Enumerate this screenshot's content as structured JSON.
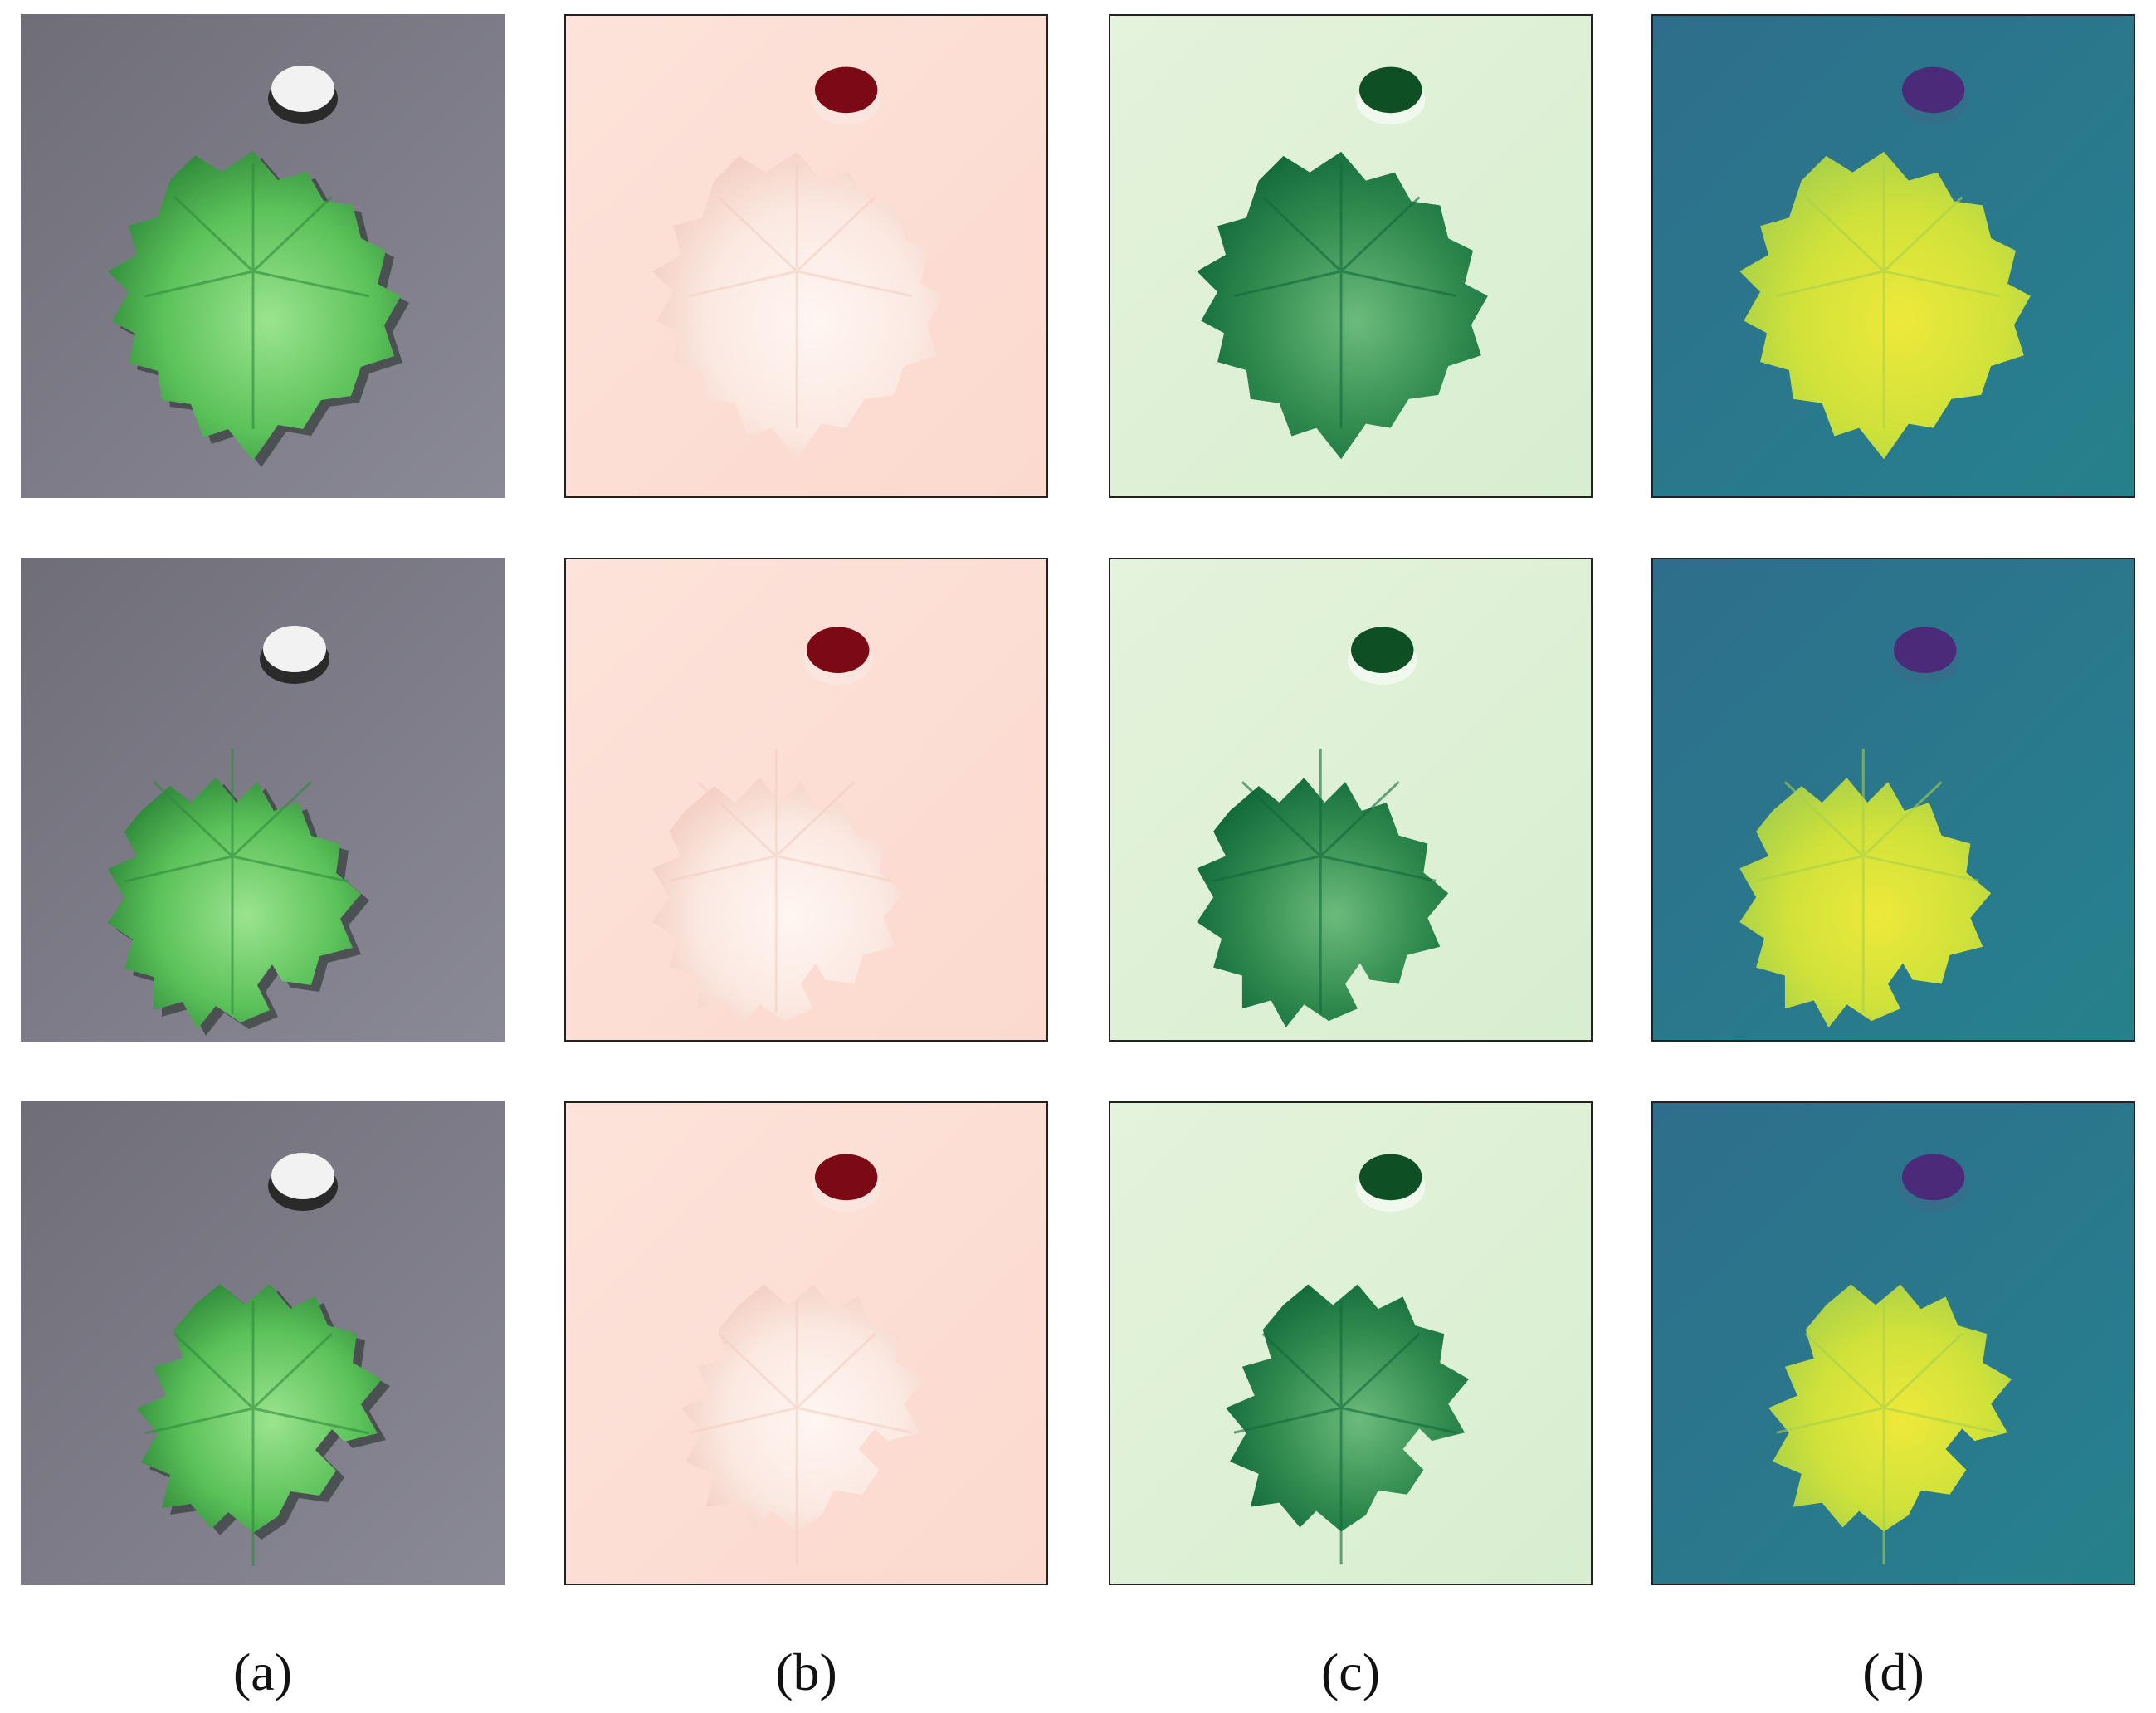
{
  "captions": [
    "(a)",
    "(b)",
    "(c)",
    "(d)"
  ],
  "columns": [
    {
      "kind": "rgb",
      "bg": "#6f6e78",
      "bg2": "#8a8996",
      "leaf": "#5cc25a",
      "leaf_dark": "#2f8a3a",
      "leaf_light": "#9be48e",
      "marker": "#f2f2f2",
      "marker_rim": "#2a2a2a",
      "bordered": false
    },
    {
      "kind": "red",
      "bg": "#fde3da",
      "bg2": "#fbd9ce",
      "leaf": "#fbe9e2",
      "leaf_dark": "#f3cfc2",
      "leaf_light": "#fff6f2",
      "marker": "#7c0a14",
      "marker_rim": "#fbe6df",
      "bordered": true
    },
    {
      "kind": "green",
      "bg": "#e4f3dc",
      "bg2": "#d8eecf",
      "leaf": "#2f8a4e",
      "leaf_dark": "#11693a",
      "leaf_light": "#6cbb7c",
      "marker": "#0f4f24",
      "marker_rim": "#f1f9ee",
      "bordered": true
    },
    {
      "kind": "viridis",
      "bg": "#2e6e8c",
      "bg2": "#26818c",
      "leaf": "#d0e23a",
      "leaf_dark": "#a8d04a",
      "leaf_light": "#eee93a",
      "marker": "#4b2a7a",
      "marker_rim": "#346f8a",
      "bordered": true
    }
  ]
}
